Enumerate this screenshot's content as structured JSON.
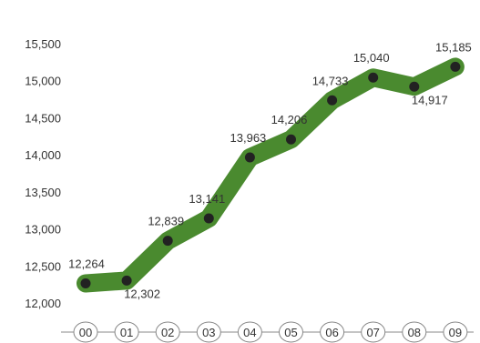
{
  "chart_data": {
    "type": "line",
    "title": "",
    "xlabel": "",
    "ylabel": "",
    "categories": [
      "00",
      "01",
      "02",
      "03",
      "04",
      "05",
      "06",
      "07",
      "08",
      "09"
    ],
    "series": [
      {
        "values": [
          12264,
          12302,
          12839,
          13141,
          13963,
          14206,
          14733,
          15040,
          14917,
          15185
        ],
        "labels": [
          "12,264",
          "12,302",
          "12,839",
          "13,141",
          "13,963",
          "14,206",
          "14,733",
          "15,040",
          "14,917",
          "15,185"
        ],
        "label_position": [
          "above",
          "below",
          "above",
          "above",
          "above",
          "above",
          "above",
          "above",
          "below",
          "above"
        ]
      }
    ],
    "yticks": [
      "12,000",
      "12,500",
      "13,000",
      "13,500",
      "14,000",
      "14,500",
      "15,000",
      "15,500"
    ],
    "ylim": [
      12000,
      15500
    ],
    "grid": false,
    "legend": "none",
    "colors": {
      "line": "#4a8a2f",
      "marker": "#222222",
      "axis": "#888888",
      "text": "#333333"
    }
  }
}
